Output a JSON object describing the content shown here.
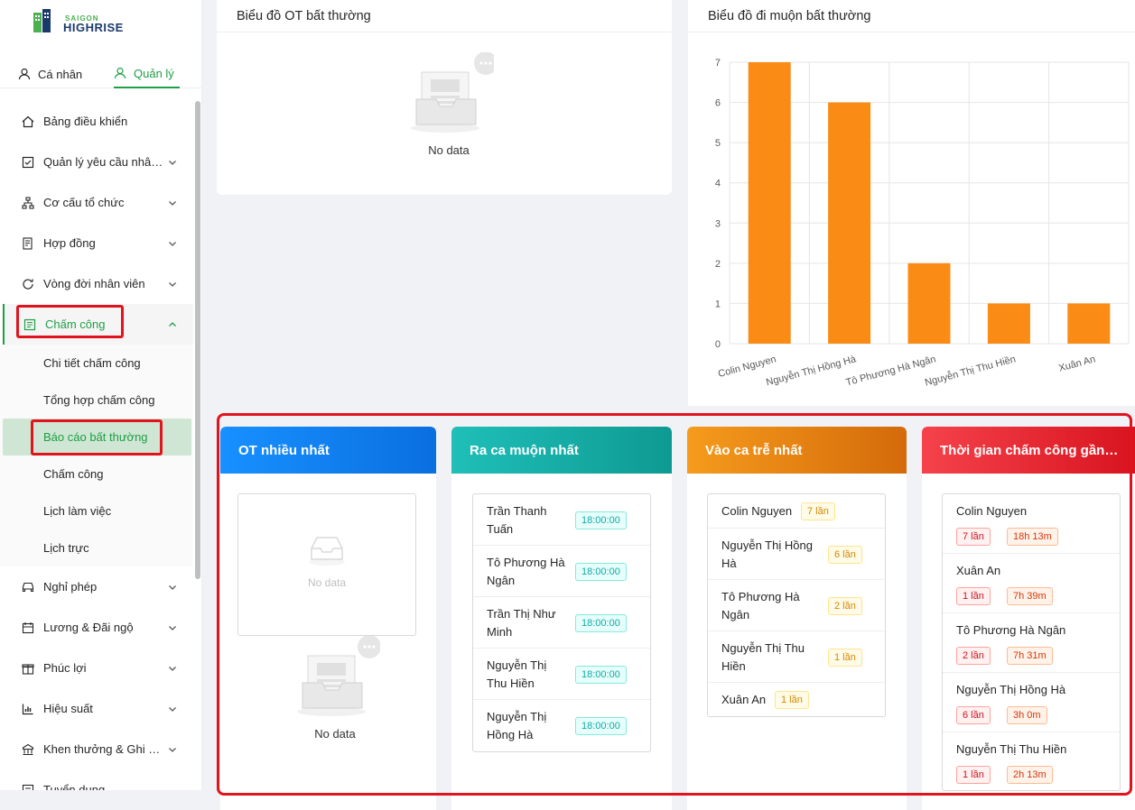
{
  "logo": {
    "line1": "SAIGON",
    "line2": "HIGHRISE"
  },
  "top_tabs": [
    {
      "label": "Cá nhân",
      "icon": "user-icon",
      "active": false
    },
    {
      "label": "Quản lý",
      "icon": "user-icon",
      "active": true
    }
  ],
  "menu": {
    "items": [
      {
        "label": "Bảng điều khiển",
        "icon": "home-icon"
      },
      {
        "label": "Quản lý yêu cầu nhân viên",
        "icon": "checkbox-icon"
      },
      {
        "label": "Cơ cấu tổ chức",
        "icon": "org-icon"
      },
      {
        "label": "Hợp đồng",
        "icon": "contract-icon"
      },
      {
        "label": "Vòng đời nhân viên",
        "icon": "cycle-icon"
      },
      {
        "label": "Chấm công",
        "icon": "timesheet-icon"
      }
    ],
    "submenu": [
      "Chi tiết chấm công",
      "Tổng hợp chấm công",
      "Báo cáo bất thường",
      "Chấm công",
      "Lịch làm việc",
      "Lịch trực"
    ],
    "items_after": [
      {
        "label": "Nghỉ phép",
        "icon": "car-icon"
      },
      {
        "label": "Lương & Đãi ngộ",
        "icon": "salary-icon"
      },
      {
        "label": "Phúc lợi",
        "icon": "gift-icon"
      },
      {
        "label": "Hiệu suất",
        "icon": "chart-icon"
      },
      {
        "label": "Khen thưởng & Ghi nhận",
        "icon": "award-icon"
      },
      {
        "label": "Tuyển dụng",
        "icon": "recruit-icon"
      }
    ]
  },
  "ot_chart_card": {
    "title": "Biểu đồ OT bất thường",
    "empty_text": "No data"
  },
  "late_chart_card": {
    "title": "Biểu đồ đi muộn bất thường"
  },
  "chart_data": {
    "type": "bar",
    "categories": [
      "Colin Nguyen",
      "Nguyễn Thị Hồng Hà",
      "Tô Phương Hà Ngân",
      "Nguyễn Thị Thu Hiền",
      "Xuân An"
    ],
    "values": [
      7,
      6,
      2,
      1,
      1
    ],
    "ylim": [
      0,
      7
    ],
    "yticks": [
      "0",
      "1",
      "2",
      "3",
      "4",
      "5",
      "6",
      "7"
    ],
    "color": "#fa8c16",
    "grid": true
  },
  "panels": {
    "ot_most": {
      "title": "OT nhiều nhất",
      "empty_inner": "No data",
      "empty_outer": "No data",
      "color_from": "#1890ff",
      "color_to": "#0a6fe0"
    },
    "late_out": {
      "title": "Ra ca muộn nhất",
      "rows": [
        {
          "name_line1": "Trần Thanh",
          "name_line2": "Tuấn",
          "time": "18:00:00"
        },
        {
          "name_line1": "Tô Phương Hà",
          "name_line2": "Ngân",
          "time": "18:00:00"
        },
        {
          "name_line1": "Trần Thị Như",
          "name_line2": "Minh",
          "time": "18:00:00"
        },
        {
          "name_line1": "Nguyễn Thị",
          "name_line2": "Thu Hiền",
          "time": "18:00:00"
        },
        {
          "name_line1": "Nguyễn Thị",
          "name_line2": "Hồng Hà",
          "time": "18:00:00"
        }
      ]
    },
    "late_in": {
      "title": "Vào ca trễ nhất",
      "rows": [
        {
          "name_line1": "Colin Nguyen",
          "name_line2": "",
          "count": "7 lần"
        },
        {
          "name_line1": "Nguyễn Thị Hồng",
          "name_line2": "Hà",
          "count": "6 lần"
        },
        {
          "name_line1": "Tô Phương Hà",
          "name_line2": "Ngân",
          "count": "2 lần"
        },
        {
          "name_line1": "Nguyễn Thị Thu",
          "name_line2": "Hiền",
          "count": "1 lần"
        },
        {
          "name_line1": "Xuân An",
          "name_line2": "",
          "count": "1 lần"
        }
      ]
    },
    "recent_time": {
      "title": "Thời gian chấm công gần nhất",
      "rows": [
        {
          "name": "Colin Nguyen",
          "count": "7 lần",
          "duration": "18h 13m"
        },
        {
          "name": "Xuân An",
          "count": "1 lần",
          "duration": "7h 39m"
        },
        {
          "name": "Tô Phương Hà Ngân",
          "count": "2 lần",
          "duration": "7h 31m"
        },
        {
          "name": "Nguyễn Thị Hồng Hà",
          "count": "6 lần",
          "duration": "3h 0m"
        },
        {
          "name": "Nguyễn Thị Thu Hiền",
          "count": "1 lần",
          "duration": "2h 13m"
        }
      ]
    }
  }
}
